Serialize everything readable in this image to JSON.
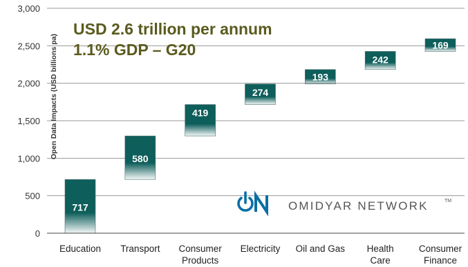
{
  "chart_data": {
    "type": "bar",
    "subtype": "waterfall",
    "categories": [
      [
        "Education"
      ],
      [
        "Transport"
      ],
      [
        "Consumer",
        "Products"
      ],
      [
        "Electricity"
      ],
      [
        "Oil and Gas"
      ],
      [
        "Health",
        "Care"
      ],
      [
        "Consumer",
        "Finance"
      ]
    ],
    "values": [
      717,
      580,
      419,
      274,
      193,
      242,
      169
    ],
    "data_labels": [
      "717",
      "580",
      "419",
      "274",
      "193",
      "242",
      "169"
    ],
    "ylabel": "Open Data Impacts (USD billions pa)",
    "ylim": [
      0,
      3000
    ],
    "yticks": [
      0,
      500,
      1000,
      1500,
      2000,
      2500,
      3000
    ],
    "ytick_labels": [
      "0",
      "500",
      "1,000",
      "1,500",
      "2,000",
      "2,500",
      "3,000"
    ],
    "grid": "horizontal",
    "bar_color": "#0e5e5b",
    "annotations": [
      "USD 2.6 trillion per annum",
      "1.1% GDP – G20"
    ]
  },
  "logo": {
    "mark": "ON",
    "text": "OMIDYAR NETWORK",
    "tm": "TM",
    "color_mark": "#0a6fa5"
  }
}
